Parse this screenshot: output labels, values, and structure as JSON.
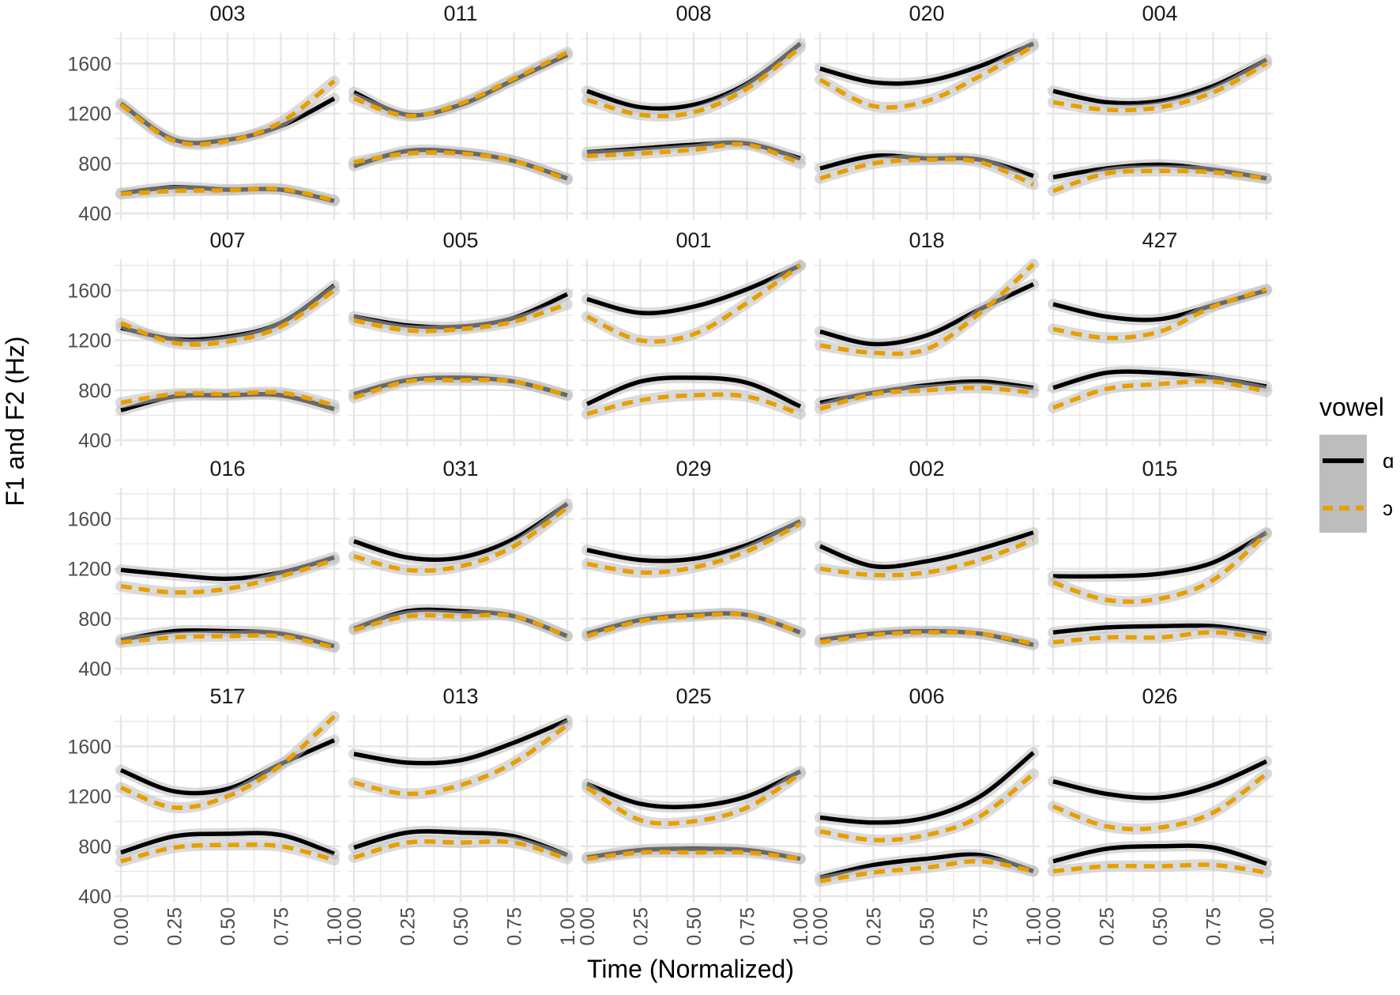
{
  "chart_data": {
    "type": "line",
    "title": "",
    "xlabel": "Time (Normalized)",
    "ylabel": "F1 and F2 (Hz)",
    "xlim": [
      0,
      1
    ],
    "ylim": [
      400,
      1850
    ],
    "x_ticks": [
      0,
      0.25,
      0.5,
      0.75,
      1
    ],
    "x_tick_labels": [
      "0.00",
      "0.25",
      "0.50",
      "0.75",
      "1.00"
    ],
    "y_ticks": [
      400,
      800,
      1200,
      1600
    ],
    "y_tick_labels": [
      "400",
      "800",
      "1200",
      "1600"
    ],
    "x": [
      0,
      0.25,
      0.5,
      0.75,
      1
    ],
    "legend": {
      "title": "vowel",
      "position": "right",
      "entries": [
        {
          "label": "ɑ",
          "color": "#000000",
          "dash": "solid"
        },
        {
          "label": "ɔ",
          "color": "#E69F00",
          "dash": "dashed"
        }
      ]
    },
    "colors": {
      "a": "#000000",
      "o": "#E69F00",
      "ribbon": "#bdbdbd",
      "grid": "#e6e6e6",
      "panel": "#ffffff"
    },
    "panels": [
      {
        "title": "003",
        "a": {
          "F1": [
            560,
            610,
            590,
            590,
            500
          ],
          "F2": [
            1280,
            990,
            990,
            1100,
            1320
          ]
        },
        "o": {
          "F1": [
            555,
            580,
            585,
            595,
            505
          ],
          "F2": [
            1270,
            980,
            980,
            1130,
            1460
          ]
        }
      },
      {
        "title": "011",
        "a": {
          "F1": [
            780,
            900,
            890,
            820,
            680
          ],
          "F2": [
            1370,
            1190,
            1270,
            1470,
            1670
          ]
        },
        "o": {
          "F1": [
            810,
            880,
            880,
            820,
            670
          ],
          "F2": [
            1320,
            1180,
            1280,
            1480,
            1690
          ]
        }
      },
      {
        "title": "008",
        "a": {
          "F1": [
            890,
            920,
            950,
            960,
            840
          ],
          "F2": [
            1380,
            1250,
            1270,
            1440,
            1760
          ]
        },
        "o": {
          "F1": [
            860,
            880,
            910,
            950,
            800
          ],
          "F2": [
            1310,
            1190,
            1210,
            1400,
            1730
          ]
        }
      },
      {
        "title": "020",
        "a": {
          "F1": [
            760,
            860,
            840,
            830,
            700
          ],
          "F2": [
            1560,
            1450,
            1460,
            1580,
            1760
          ]
        },
        "o": {
          "F1": [
            680,
            800,
            830,
            810,
            630
          ],
          "F2": [
            1470,
            1260,
            1300,
            1500,
            1740
          ]
        }
      },
      {
        "title": "004",
        "a": {
          "F1": [
            690,
            760,
            790,
            750,
            680
          ],
          "F2": [
            1380,
            1290,
            1300,
            1420,
            1630
          ]
        },
        "o": {
          "F1": [
            580,
            720,
            740,
            730,
            680
          ],
          "F2": [
            1290,
            1230,
            1250,
            1370,
            1600
          ]
        }
      },
      {
        "title": "007",
        "a": {
          "F1": [
            640,
            750,
            760,
            760,
            650
          ],
          "F2": [
            1300,
            1210,
            1230,
            1340,
            1640
          ]
        },
        "o": {
          "F1": [
            700,
            770,
            770,
            780,
            680
          ],
          "F2": [
            1340,
            1180,
            1190,
            1310,
            1600
          ]
        }
      },
      {
        "title": "005",
        "a": {
          "F1": [
            770,
            880,
            900,
            870,
            760
          ],
          "F2": [
            1390,
            1320,
            1310,
            1380,
            1570
          ]
        },
        "o": {
          "F1": [
            740,
            870,
            880,
            870,
            760
          ],
          "F2": [
            1360,
            1280,
            1290,
            1350,
            1490
          ]
        }
      },
      {
        "title": "001",
        "a": {
          "F1": [
            690,
            870,
            900,
            860,
            670
          ],
          "F2": [
            1530,
            1420,
            1470,
            1610,
            1800
          ]
        },
        "o": {
          "F1": [
            610,
            720,
            760,
            750,
            610
          ],
          "F2": [
            1390,
            1200,
            1250,
            1500,
            1800
          ]
        }
      },
      {
        "title": "018",
        "a": {
          "F1": [
            700,
            780,
            840,
            870,
            820
          ],
          "F2": [
            1270,
            1170,
            1240,
            1450,
            1650
          ]
        },
        "o": {
          "F1": [
            650,
            770,
            800,
            820,
            780
          ],
          "F2": [
            1160,
            1100,
            1130,
            1420,
            1810
          ]
        }
      },
      {
        "title": "427",
        "a": {
          "F1": [
            820,
            940,
            940,
            900,
            830
          ],
          "F2": [
            1490,
            1390,
            1370,
            1480,
            1600
          ]
        },
        "o": {
          "F1": [
            660,
            810,
            850,
            870,
            790
          ],
          "F2": [
            1290,
            1220,
            1270,
            1470,
            1610
          ]
        }
      },
      {
        "title": "016",
        "a": {
          "F1": [
            630,
            700,
            700,
            680,
            580
          ],
          "F2": [
            1190,
            1150,
            1120,
            1170,
            1290
          ]
        },
        "o": {
          "F1": [
            610,
            650,
            660,
            660,
            570
          ],
          "F2": [
            1060,
            1010,
            1040,
            1140,
            1270
          ]
        }
      },
      {
        "title": "031",
        "a": {
          "F1": [
            720,
            860,
            860,
            820,
            660
          ],
          "F2": [
            1420,
            1290,
            1290,
            1440,
            1720
          ]
        },
        "o": {
          "F1": [
            710,
            820,
            820,
            820,
            660
          ],
          "F2": [
            1300,
            1190,
            1220,
            1380,
            1690
          ]
        }
      },
      {
        "title": "029",
        "a": {
          "F1": [
            680,
            790,
            830,
            830,
            690
          ],
          "F2": [
            1350,
            1270,
            1280,
            1390,
            1580
          ]
        },
        "o": {
          "F1": [
            660,
            780,
            820,
            830,
            690
          ],
          "F2": [
            1240,
            1170,
            1210,
            1340,
            1560
          ]
        }
      },
      {
        "title": "002",
        "a": {
          "F1": [
            630,
            680,
            700,
            680,
            590
          ],
          "F2": [
            1380,
            1220,
            1260,
            1360,
            1490
          ]
        },
        "o": {
          "F1": [
            610,
            670,
            690,
            680,
            600
          ],
          "F2": [
            1200,
            1150,
            1170,
            1270,
            1430
          ]
        }
      },
      {
        "title": "015",
        "a": {
          "F1": [
            690,
            730,
            740,
            740,
            680
          ],
          "F2": [
            1140,
            1140,
            1160,
            1250,
            1490
          ]
        },
        "o": {
          "F1": [
            610,
            650,
            650,
            690,
            640
          ],
          "F2": [
            1090,
            950,
            960,
            1110,
            1480
          ]
        }
      },
      {
        "title": "517",
        "a": {
          "F1": [
            750,
            880,
            900,
            890,
            740
          ],
          "F2": [
            1410,
            1240,
            1260,
            1460,
            1650
          ]
        },
        "o": {
          "F1": [
            680,
            790,
            810,
            800,
            690
          ],
          "F2": [
            1270,
            1110,
            1200,
            1450,
            1840
          ]
        }
      },
      {
        "title": "013",
        "a": {
          "F1": [
            790,
            910,
            910,
            880,
            730
          ],
          "F2": [
            1540,
            1470,
            1490,
            1630,
            1810
          ]
        },
        "o": {
          "F1": [
            710,
            830,
            830,
            830,
            700
          ],
          "F2": [
            1310,
            1220,
            1290,
            1470,
            1770
          ]
        }
      },
      {
        "title": "025",
        "a": {
          "F1": [
            710,
            770,
            780,
            770,
            700
          ],
          "F2": [
            1300,
            1140,
            1120,
            1200,
            1400
          ]
        },
        "o": {
          "F1": [
            700,
            750,
            750,
            750,
            700
          ],
          "F2": [
            1270,
            1010,
            1000,
            1110,
            1380
          ]
        }
      },
      {
        "title": "006",
        "a": {
          "F1": [
            550,
            650,
            700,
            730,
            600
          ],
          "F2": [
            1030,
            990,
            1030,
            1200,
            1550
          ]
        },
        "o": {
          "F1": [
            520,
            590,
            630,
            680,
            600
          ],
          "F2": [
            920,
            850,
            890,
            1040,
            1380
          ]
        }
      },
      {
        "title": "026",
        "a": {
          "F1": [
            680,
            780,
            800,
            790,
            660
          ],
          "F2": [
            1320,
            1220,
            1190,
            1290,
            1480
          ]
        },
        "o": {
          "F1": [
            600,
            640,
            640,
            650,
            590
          ],
          "F2": [
            1120,
            960,
            950,
            1070,
            1380
          ]
        }
      }
    ]
  }
}
